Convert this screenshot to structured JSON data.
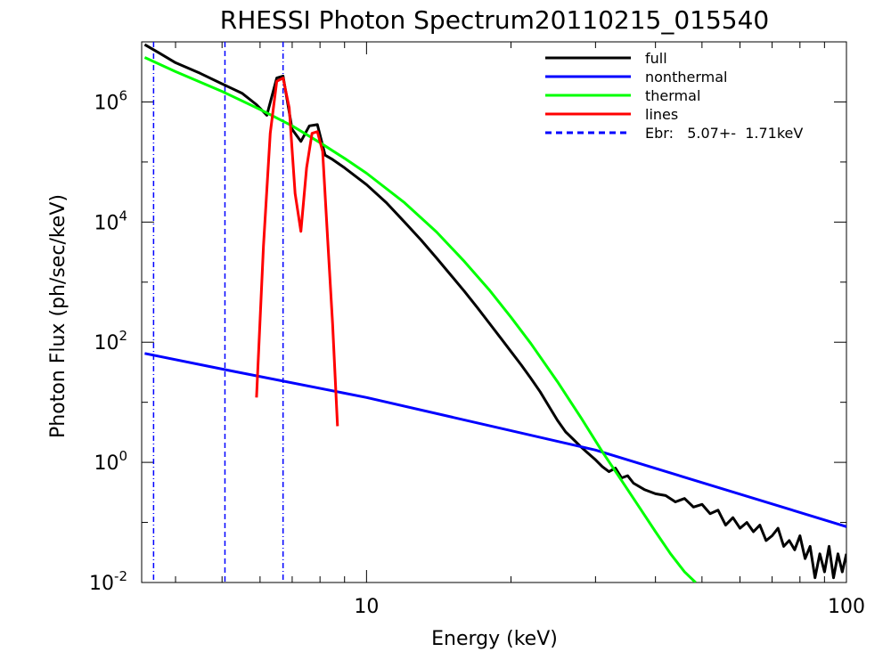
{
  "chart_data": {
    "type": "line",
    "title": "RHESSI Photon Spectrum20110215_015540",
    "xlabel": "Energy (keV)",
    "ylabel": "Photon Flux (ph/sec/keV)",
    "xscale": "log",
    "yscale": "log",
    "xlim": [
      3.4,
      100
    ],
    "ylim": [
      0.01,
      10000000
    ],
    "x_ticks": [
      {
        "value": 10,
        "label": "10"
      },
      {
        "value": 100,
        "label": "100"
      }
    ],
    "y_ticks": [
      {
        "value": 0.01,
        "base": "10",
        "exp": "-2"
      },
      {
        "value": 1,
        "base": "10",
        "exp": "0"
      },
      {
        "value": 100,
        "base": "10",
        "exp": "2"
      },
      {
        "value": 10000,
        "base": "10",
        "exp": "4"
      },
      {
        "value": 1000000,
        "base": "10",
        "exp": "6"
      }
    ],
    "grid": false,
    "legend_position": "top-right",
    "series": [
      {
        "name": "full",
        "color": "#000000",
        "x": [
          3.45,
          3.7,
          4.0,
          4.5,
          5.0,
          5.5,
          5.9,
          6.2,
          6.5,
          6.7,
          7.0,
          7.3,
          7.6,
          7.9,
          8.2,
          8.5,
          9.0,
          10,
          11,
          12,
          13,
          14,
          15,
          16,
          17,
          18,
          19,
          20,
          21,
          22,
          23,
          24,
          25,
          26,
          27,
          28,
          29,
          30,
          31,
          32,
          33,
          34,
          35,
          36,
          38,
          40,
          42,
          44,
          46,
          48,
          50,
          52,
          54,
          56,
          58,
          60,
          62,
          64,
          66,
          68,
          70,
          72,
          74,
          76,
          78,
          80,
          82,
          84,
          86,
          88,
          90,
          92,
          94,
          96,
          98,
          100
        ],
        "y": [
          9000000,
          6500000,
          4500000,
          3000000,
          2000000,
          1400000,
          900000,
          600000,
          2500000,
          2700000,
          350000,
          220000,
          400000,
          420000,
          130000,
          110000,
          80000,
          42000,
          21000,
          10000,
          5000,
          2500,
          1300,
          700,
          380,
          210,
          120,
          70,
          42,
          25,
          15,
          8.5,
          5,
          3.2,
          2.4,
          1.8,
          1.4,
          1.1,
          0.85,
          0.7,
          0.8,
          0.55,
          0.6,
          0.45,
          0.35,
          0.3,
          0.28,
          0.22,
          0.25,
          0.18,
          0.2,
          0.14,
          0.16,
          0.09,
          0.12,
          0.08,
          0.1,
          0.07,
          0.09,
          0.05,
          0.06,
          0.08,
          0.04,
          0.05,
          0.035,
          0.06,
          0.025,
          0.04,
          0.012,
          0.03,
          0.015,
          0.04,
          0.012,
          0.03,
          0.015,
          0.03
        ]
      },
      {
        "name": "nonthermal",
        "color": "#0000ff",
        "x": [
          3.45,
          5.07,
          10,
          30,
          100
        ],
        "y": [
          65,
          35,
          12,
          1.6,
          0.085
        ]
      },
      {
        "name": "thermal",
        "color": "#00ff00",
        "x": [
          3.45,
          4,
          5,
          6,
          7,
          8,
          9,
          10,
          12,
          14,
          16,
          18,
          20,
          22,
          25,
          28,
          31,
          34,
          37,
          40,
          43,
          46,
          48.5
        ],
        "y": [
          5500000,
          3200000,
          1500000,
          750000,
          400000,
          210000,
          115000,
          65000,
          21000,
          6800,
          2200,
          750,
          260,
          95,
          22,
          5.5,
          1.5,
          0.5,
          0.18,
          0.07,
          0.03,
          0.015,
          0.01
        ]
      },
      {
        "name": "lines",
        "color": "#ff0000",
        "x": [
          5.9,
          6.1,
          6.3,
          6.5,
          6.7,
          6.9,
          7.1,
          7.3,
          7.5,
          7.7,
          7.9,
          8.1,
          8.3,
          8.5,
          8.7
        ],
        "y": [
          12,
          4000,
          300000,
          2200000,
          2500000,
          800000,
          30000,
          7000,
          80000,
          300000,
          320000,
          150000,
          5000,
          200,
          4
        ]
      }
    ],
    "vlines": [
      {
        "x": 3.6,
        "style": "dash-dot"
      },
      {
        "x": 5.07,
        "style": "dashed"
      },
      {
        "x": 6.7,
        "style": "dash-dot"
      }
    ],
    "legend": [
      {
        "label": "full",
        "color": "#000000",
        "dash": "solid"
      },
      {
        "label": "nonthermal",
        "color": "#0000ff",
        "dash": "solid"
      },
      {
        "label": "thermal",
        "color": "#00ff00",
        "dash": "solid"
      },
      {
        "label": "lines",
        "color": "#ff0000",
        "dash": "solid"
      },
      {
        "label": "Ebr:   5.07+-  1.71keV",
        "color": "#0000ff",
        "dash": "dashed"
      }
    ]
  }
}
